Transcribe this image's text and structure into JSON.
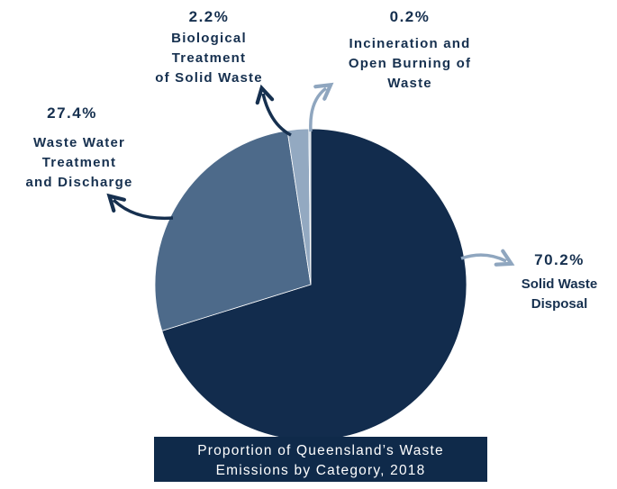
{
  "chart_data": {
    "type": "pie",
    "title": "Proportion of Queensland's Waste Emissions by Category, 2018",
    "title_lines": [
      "Proportion of Queensland’s Waste",
      "Emissions by Category, 2018"
    ],
    "categories": [
      "Solid Waste Disposal",
      "Waste Water Treatment and Discharge",
      "Biological Treatment of Solid Waste",
      "Incineration and Open Burning of Waste"
    ],
    "values": [
      70.2,
      27.4,
      2.2,
      0.2
    ],
    "slices": [
      {
        "name": "Solid Waste Disposal",
        "value": 70.2,
        "percent_label": "70.2%",
        "label_lines": [
          "Solid Waste",
          "Disposal"
        ],
        "color": "#122c4d"
      },
      {
        "name": "Waste Water Treatment and Discharge",
        "value": 27.4,
        "percent_label": "27.4%",
        "label_lines": [
          "Waste Water",
          "Treatment",
          "and Discharge"
        ],
        "color": "#4d6a8a"
      },
      {
        "name": "Biological Treatment of Solid Waste",
        "value": 2.2,
        "percent_label": "2.2%",
        "label_lines": [
          "Biological",
          "Treatment",
          "of Solid Waste"
        ],
        "color": "#93a9c1"
      },
      {
        "name": "Incineration and Open Burning of Waste",
        "value": 0.2,
        "percent_label": "0.2%",
        "label_lines": [
          "Incineration and",
          "Open Burning of",
          "Waste"
        ],
        "color": "#c9d6e3"
      }
    ]
  }
}
